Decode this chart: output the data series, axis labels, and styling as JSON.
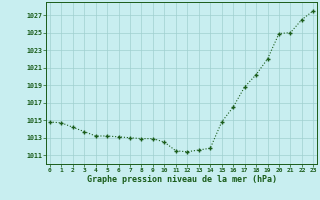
{
  "x": [
    0,
    1,
    2,
    3,
    4,
    5,
    6,
    7,
    8,
    9,
    10,
    11,
    12,
    13,
    14,
    15,
    16,
    17,
    18,
    19,
    20,
    21,
    22,
    23
  ],
  "y": [
    1014.8,
    1014.7,
    1014.2,
    1013.7,
    1013.2,
    1013.2,
    1013.1,
    1013.0,
    1012.9,
    1012.9,
    1012.5,
    1011.5,
    1011.4,
    1011.6,
    1011.8,
    1014.8,
    1016.5,
    1018.8,
    1020.2,
    1022.0,
    1024.9,
    1025.0,
    1026.5,
    1027.5
  ],
  "line_color": "#1a5c1a",
  "marker_color": "#1a5c1a",
  "bg_color": "#c8eef0",
  "grid_color": "#a0d0d0",
  "xlabel": "Graphe pression niveau de la mer (hPa)",
  "xlabel_color": "#1a5c1a",
  "tick_color": "#1a5c1a",
  "ylim": [
    1010.0,
    1028.5
  ],
  "xlim": [
    -0.3,
    23.3
  ],
  "yticks": [
    1011,
    1013,
    1015,
    1017,
    1019,
    1021,
    1023,
    1025,
    1027
  ],
  "xticks": [
    0,
    1,
    2,
    3,
    4,
    5,
    6,
    7,
    8,
    9,
    10,
    11,
    12,
    13,
    14,
    15,
    16,
    17,
    18,
    19,
    20,
    21,
    22,
    23
  ],
  "xtick_labels": [
    "0",
    "1",
    "2",
    "3",
    "4",
    "5",
    "6",
    "7",
    "8",
    "9",
    "10",
    "11",
    "12",
    "13",
    "14",
    "15",
    "16",
    "17",
    "18",
    "19",
    "20",
    "21",
    "22",
    "23"
  ]
}
